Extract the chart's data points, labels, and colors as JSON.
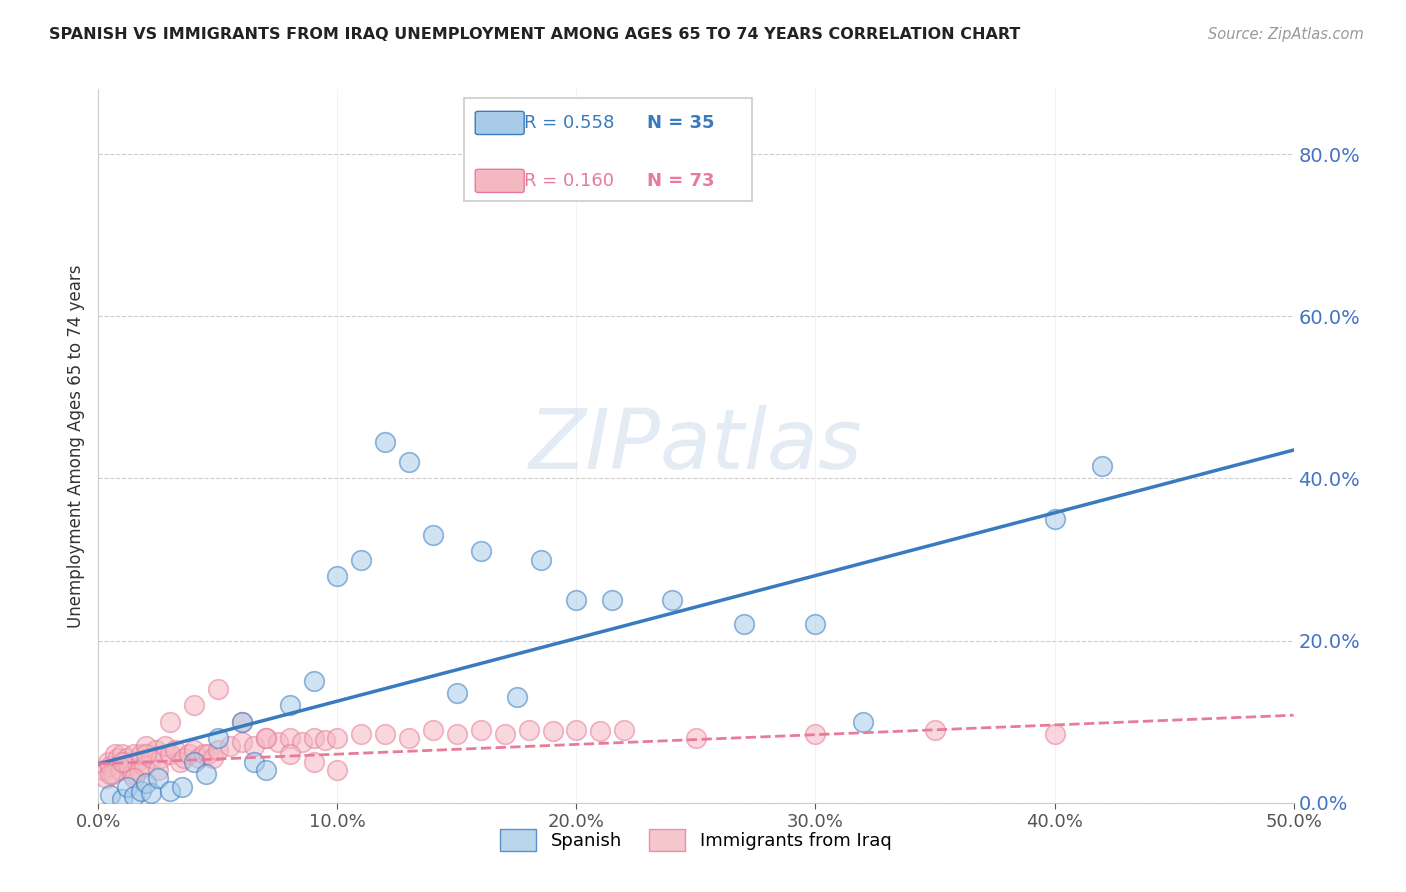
{
  "title": "SPANISH VS IMMIGRANTS FROM IRAQ UNEMPLOYMENT AMONG AGES 65 TO 74 YEARS CORRELATION CHART",
  "source": "Source: ZipAtlas.com",
  "ylabel": "Unemployment Among Ages 65 to 74 years",
  "xlim": [
    0.0,
    0.5
  ],
  "ylim": [
    0.0,
    0.88
  ],
  "yticks": [
    0.0,
    0.2,
    0.4,
    0.6,
    0.8
  ],
  "xticks": [
    0.0,
    0.1,
    0.2,
    0.3,
    0.4,
    0.5
  ],
  "watermark": "ZIPatlas",
  "legend_r1": "R = 0.558",
  "legend_n1": "N = 35",
  "legend_r2": "R = 0.160",
  "legend_n2": "N = 73",
  "color_spanish": "#a8cce8",
  "color_iraq": "#f4b8c1",
  "color_trend_spanish": "#3a7abf",
  "color_trend_iraq": "#e87a9a",
  "background_color": "#ffffff",
  "spanish_x": [
    0.005,
    0.01,
    0.012,
    0.015,
    0.018,
    0.02,
    0.022,
    0.025,
    0.03,
    0.035,
    0.04,
    0.045,
    0.05,
    0.06,
    0.065,
    0.07,
    0.08,
    0.09,
    0.1,
    0.11,
    0.12,
    0.13,
    0.14,
    0.15,
    0.16,
    0.175,
    0.185,
    0.2,
    0.215,
    0.24,
    0.27,
    0.3,
    0.32,
    0.4,
    0.42
  ],
  "spanish_y": [
    0.01,
    0.005,
    0.02,
    0.008,
    0.015,
    0.025,
    0.012,
    0.03,
    0.015,
    0.02,
    0.05,
    0.035,
    0.08,
    0.1,
    0.05,
    0.04,
    0.12,
    0.15,
    0.28,
    0.3,
    0.445,
    0.42,
    0.33,
    0.135,
    0.31,
    0.13,
    0.3,
    0.25,
    0.25,
    0.25,
    0.22,
    0.22,
    0.1,
    0.35,
    0.415
  ],
  "iraq_x": [
    0.002,
    0.003,
    0.004,
    0.005,
    0.006,
    0.007,
    0.008,
    0.009,
    0.01,
    0.011,
    0.012,
    0.013,
    0.014,
    0.015,
    0.016,
    0.017,
    0.018,
    0.019,
    0.02,
    0.022,
    0.024,
    0.026,
    0.028,
    0.03,
    0.032,
    0.034,
    0.036,
    0.038,
    0.04,
    0.042,
    0.044,
    0.046,
    0.048,
    0.05,
    0.055,
    0.06,
    0.065,
    0.07,
    0.075,
    0.08,
    0.085,
    0.09,
    0.095,
    0.1,
    0.11,
    0.12,
    0.13,
    0.14,
    0.15,
    0.16,
    0.17,
    0.18,
    0.19,
    0.2,
    0.21,
    0.22,
    0.005,
    0.01,
    0.015,
    0.02,
    0.025,
    0.03,
    0.04,
    0.05,
    0.06,
    0.07,
    0.08,
    0.09,
    0.1,
    0.25,
    0.3,
    0.35,
    0.4
  ],
  "iraq_y": [
    0.04,
    0.03,
    0.05,
    0.045,
    0.035,
    0.06,
    0.055,
    0.04,
    0.06,
    0.05,
    0.055,
    0.045,
    0.035,
    0.06,
    0.05,
    0.04,
    0.06,
    0.045,
    0.07,
    0.055,
    0.065,
    0.055,
    0.07,
    0.06,
    0.065,
    0.05,
    0.055,
    0.06,
    0.065,
    0.055,
    0.06,
    0.06,
    0.055,
    0.065,
    0.07,
    0.075,
    0.07,
    0.08,
    0.075,
    0.08,
    0.075,
    0.08,
    0.078,
    0.08,
    0.085,
    0.085,
    0.08,
    0.09,
    0.085,
    0.09,
    0.085,
    0.09,
    0.088,
    0.09,
    0.088,
    0.09,
    0.035,
    0.05,
    0.03,
    0.06,
    0.04,
    0.1,
    0.12,
    0.14,
    0.1,
    0.08,
    0.06,
    0.05,
    0.04,
    0.08,
    0.085,
    0.09,
    0.085
  ],
  "trend_spanish_x0": 0.0,
  "trend_spanish_y0": 0.048,
  "trend_spanish_x1": 0.5,
  "trend_spanish_y1": 0.435,
  "trend_iraq_x0": 0.0,
  "trend_iraq_y0": 0.048,
  "trend_iraq_x1": 0.5,
  "trend_iraq_y1": 0.108
}
